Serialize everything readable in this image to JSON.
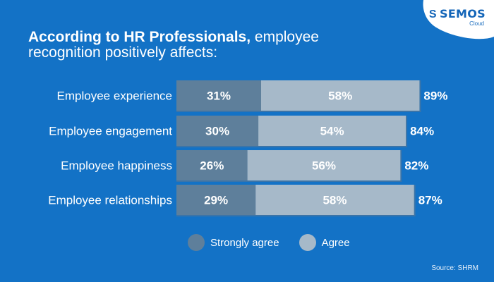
{
  "logo": {
    "brand": "SEMOS",
    "sub": "Cloud",
    "icon": "semos-s-icon"
  },
  "header": {
    "title_bold": "According to HR Professionals,",
    "title_rest1": " employee",
    "title_line2": "recognition positively affects:"
  },
  "legend": {
    "strongly_agree": "Strongly agree",
    "agree": "Agree"
  },
  "source": "Source: SHRM",
  "colors": {
    "background": "#1372c6",
    "strongly_agree": "#5e7f9b",
    "agree": "#a6b9c9",
    "track": "#3b74a8"
  },
  "chart_data": {
    "type": "bar",
    "orientation": "horizontal",
    "stacked": true,
    "title": "According to HR Professionals, employee recognition positively affects:",
    "categories": [
      "Employee experience",
      "Employee engagement",
      "Employee happiness",
      "Employee relationships"
    ],
    "series": [
      {
        "name": "Strongly agree",
        "values": [
          31,
          30,
          26,
          29
        ],
        "labels": [
          "31%",
          "30%",
          "26%",
          "29%"
        ]
      },
      {
        "name": "Agree",
        "values": [
          58,
          54,
          56,
          58
        ],
        "labels": [
          "58%",
          "54%",
          "56%",
          "58%"
        ]
      }
    ],
    "totals": [
      89,
      84,
      82,
      87
    ],
    "total_labels": [
      "89%",
      "84%",
      "82%",
      "87%"
    ],
    "xlim": [
      0,
      100
    ],
    "xlabel": "",
    "ylabel": "",
    "grid": false,
    "legend_position": "bottom"
  }
}
